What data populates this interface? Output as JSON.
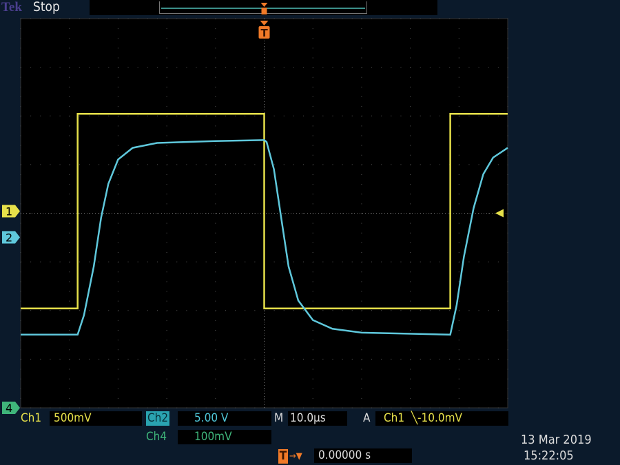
{
  "status": {
    "brand": "Tek",
    "state": "Stop"
  },
  "colors": {
    "ch1": "#e6e04a",
    "ch2": "#5fc8dc",
    "ch4": "#3fb57a",
    "trigger": "#f07a28",
    "background": "#0b1a2b",
    "graticule": "#000000"
  },
  "readouts": {
    "ch1_label": "Ch1",
    "ch1_scale": "500mV",
    "ch2_label": "Ch2",
    "ch2_scale": "5.00 V",
    "ch4_label": "Ch4",
    "ch4_scale": "100mV",
    "timebase_label": "M",
    "timebase": "10.0µs",
    "trigger_label": "A",
    "trigger_source": "Ch1",
    "trigger_level": "╲-10.0mV",
    "trigger_pos_icon": "T",
    "trigger_pos_arrow": "→▼",
    "trigger_position": "0.00000 s",
    "date": "13 Mar  2019",
    "time": "15:22:05"
  },
  "markers": {
    "ch1": "1",
    "ch2": "2",
    "ch4": "4",
    "trigger": "T"
  },
  "chart_data": {
    "type": "line",
    "title": "",
    "x_unit": "µs",
    "x_per_div": 10,
    "xlim": [
      -50,
      50
    ],
    "grid": true,
    "divisions": {
      "x": 10,
      "y": 8
    },
    "series": [
      {
        "name": "Ch1",
        "volts_per_div": 0.5,
        "ylim": [
          -2,
          2
        ],
        "points": [
          [
            -50,
            -1
          ],
          [
            -38.3,
            -1
          ],
          [
            -38.3,
            1
          ],
          [
            0,
            1
          ],
          [
            0,
            -1
          ],
          [
            38.2,
            -1
          ],
          [
            38.2,
            1
          ],
          [
            50,
            1
          ]
        ]
      },
      {
        "name": "Ch2",
        "volts_per_div": 5,
        "ylim": [
          -10,
          10
        ],
        "points": [
          [
            -50,
            -10
          ],
          [
            -38.3,
            -10
          ],
          [
            -37,
            -8
          ],
          [
            -35,
            -3
          ],
          [
            -33.5,
            2
          ],
          [
            -32,
            5.5
          ],
          [
            -30,
            8
          ],
          [
            -27,
            9.2
          ],
          [
            -22,
            9.7
          ],
          [
            -10,
            9.9
          ],
          [
            0,
            10
          ],
          [
            0.5,
            9.8
          ],
          [
            2,
            7
          ],
          [
            3.5,
            2
          ],
          [
            5,
            -3
          ],
          [
            7,
            -6.5
          ],
          [
            10,
            -8.5
          ],
          [
            14,
            -9.4
          ],
          [
            20,
            -9.8
          ],
          [
            38.2,
            -10
          ],
          [
            39.5,
            -7
          ],
          [
            41,
            -2
          ],
          [
            43,
            3
          ],
          [
            45,
            6.5
          ],
          [
            47,
            8.2
          ],
          [
            50,
            9.2
          ]
        ]
      }
    ]
  }
}
